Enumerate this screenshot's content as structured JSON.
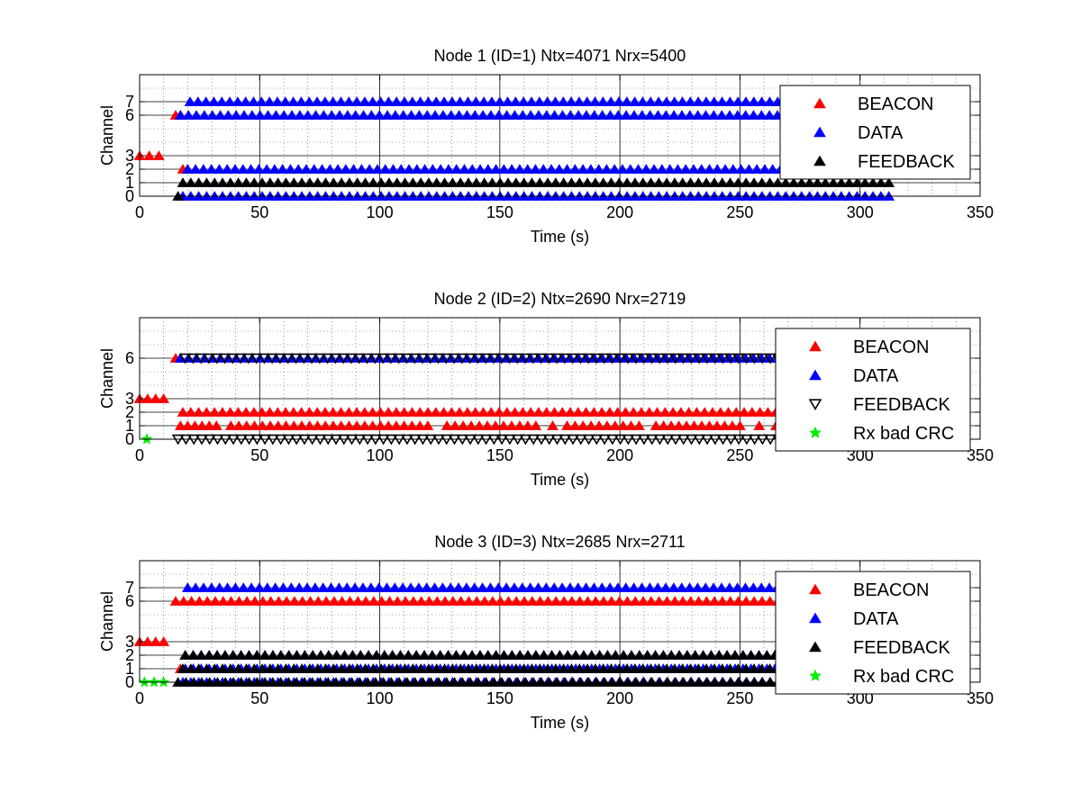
{
  "chart_data": [
    {
      "type": "scatter",
      "title": "Node 1 (ID=1) Ntx=4071 Nrx=5400",
      "xlabel": "Time (s)",
      "ylabel": "Channel",
      "xlim": [
        0,
        350
      ],
      "ylim": [
        0,
        9
      ],
      "xticks": [
        0,
        50,
        100,
        150,
        200,
        250,
        300,
        350
      ],
      "yticks": [
        0,
        1,
        2,
        3,
        6,
        7
      ],
      "grid": true,
      "legend_position": "top-right",
      "series": [
        {
          "name": "BEACON",
          "color": "#ff0000",
          "marker": "triangle-up",
          "runs": [
            {
              "y": 3,
              "x0": 0,
              "x1": 8
            },
            {
              "y": 6,
              "x0": 15,
              "x1": 17
            },
            {
              "y": 2,
              "x0": 18,
              "x1": 20
            }
          ]
        },
        {
          "name": "DATA",
          "color": "#0000ff",
          "marker": "triangle-up",
          "runs": [
            {
              "y": 7,
              "x0": 21,
              "x1": 312
            },
            {
              "y": 6,
              "x0": 17,
              "x1": 312
            },
            {
              "y": 2,
              "x0": 20,
              "x1": 313
            },
            {
              "y": 0,
              "x0": 18,
              "x1": 312
            }
          ]
        },
        {
          "name": "FEEDBACK",
          "color": "#000000",
          "marker": "triangle-up",
          "runs": [
            {
              "y": 1,
              "x0": 18,
              "x1": 312
            },
            {
              "y": 0,
              "x0": 16,
              "x1": 17
            }
          ]
        }
      ]
    },
    {
      "type": "scatter",
      "title": "Node 2 (ID=2) Ntx=2690 Nrx=2719",
      "xlabel": "Time (s)",
      "ylabel": "Channel",
      "xlim": [
        0,
        350
      ],
      "ylim": [
        0,
        9
      ],
      "xticks": [
        0,
        50,
        100,
        150,
        200,
        250,
        300,
        350
      ],
      "yticks": [
        0,
        1,
        2,
        3,
        6
      ],
      "grid": true,
      "legend_position": "top-right",
      "series": [
        {
          "name": "BEACON",
          "color": "#ff0000",
          "marker": "triangle-up",
          "runs": [
            {
              "y": 3,
              "x0": 0,
              "x1": 10
            },
            {
              "y": 6,
              "x0": 15,
              "x1": 17
            },
            {
              "y": 2,
              "x0": 18,
              "x1": 311
            },
            {
              "y": 1,
              "x0": 17,
              "x1": 32
            },
            {
              "y": 1,
              "x0": 38,
              "x1": 120
            },
            {
              "y": 1,
              "x0": 128,
              "x1": 165
            },
            {
              "y": 1,
              "x0": 172,
              "x1": 172
            },
            {
              "y": 1,
              "x0": 178,
              "x1": 208
            },
            {
              "y": 1,
              "x0": 215,
              "x1": 250
            },
            {
              "y": 1,
              "x0": 258,
              "x1": 258
            },
            {
              "y": 1,
              "x0": 265,
              "x1": 310
            }
          ]
        },
        {
          "name": "DATA",
          "color": "#0000ff",
          "marker": "triangle-up",
          "runs": [
            {
              "y": 6,
              "x0": 17,
              "x1": 312
            }
          ]
        },
        {
          "name": "FEEDBACK",
          "color": "#000000",
          "marker": "triangle-down",
          "runs": [
            {
              "y": 6,
              "x0": 19,
              "x1": 312
            },
            {
              "y": 0,
              "x0": 16,
              "x1": 312
            }
          ]
        },
        {
          "name": "Rx bad CRC",
          "color": "#00ee00",
          "marker": "star",
          "runs": [
            {
              "y": 0,
              "x0": 3,
              "x1": 3
            }
          ]
        }
      ]
    },
    {
      "type": "scatter",
      "title": "Node 3 (ID=3) Ntx=2685 Nrx=2711",
      "xlabel": "Time (s)",
      "ylabel": "Channel",
      "xlim": [
        0,
        350
      ],
      "ylim": [
        0,
        9
      ],
      "xticks": [
        0,
        50,
        100,
        150,
        200,
        250,
        300,
        350
      ],
      "yticks": [
        0,
        1,
        2,
        3,
        6,
        7
      ],
      "grid": true,
      "legend_position": "top-right",
      "series": [
        {
          "name": "BEACON",
          "color": "#ff0000",
          "marker": "triangle-up",
          "runs": [
            {
              "y": 3,
              "x0": 0,
              "x1": 10
            },
            {
              "y": 6,
              "x0": 15,
              "x1": 312
            },
            {
              "y": 1,
              "x0": 17,
              "x1": 19
            }
          ]
        },
        {
          "name": "DATA",
          "color": "#0000ff",
          "marker": "triangle-up",
          "runs": [
            {
              "y": 7,
              "x0": 20,
              "x1": 312
            },
            {
              "y": 2,
              "x0": 19,
              "x1": 311
            },
            {
              "y": 1,
              "x0": 19,
              "x1": 311
            },
            {
              "y": 0,
              "x0": 18,
              "x1": 312
            }
          ]
        },
        {
          "name": "FEEDBACK",
          "color": "#000000",
          "marker": "triangle-up",
          "runs": [
            {
              "y": 2,
              "x0": 19,
              "x1": 311
            },
            {
              "y": 1,
              "x0": 18,
              "x1": 312
            },
            {
              "y": 0,
              "x0": 16,
              "x1": 312
            }
          ]
        },
        {
          "name": "Rx bad CRC",
          "color": "#00ee00",
          "marker": "star",
          "runs": [
            {
              "y": 0,
              "x0": 2,
              "x1": 10
            }
          ]
        }
      ]
    }
  ]
}
